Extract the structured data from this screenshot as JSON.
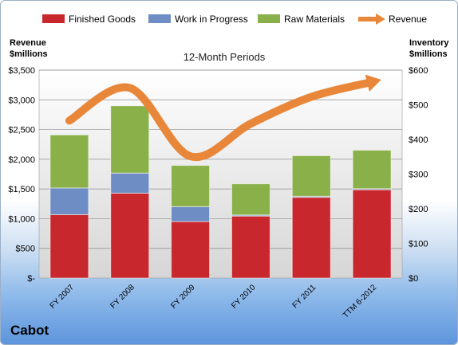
{
  "company": "Cabot",
  "chart_data": {
    "type": "bar",
    "stacked": true,
    "title": "12-Month Periods",
    "categories": [
      "FY 2007",
      "FY 2008",
      "FY 2009",
      "FY 2010",
      "FY 2011",
      "TTM 6-2012"
    ],
    "left_axis_label": [
      "Revenue",
      "$millions"
    ],
    "right_axis_label": [
      "Inventory",
      "$millions"
    ],
    "left_axis": {
      "range": [
        0,
        3500
      ],
      "ticks": [
        "$-",
        "$500",
        "$1,000",
        "$1,500",
        "$2,000",
        "$2,500",
        "$3,000",
        "$3,500"
      ]
    },
    "right_axis": {
      "range": [
        0,
        600
      ],
      "ticks": [
        "$0",
        "$100",
        "$200",
        "$300",
        "$400",
        "$500",
        "$600"
      ]
    },
    "grid": true,
    "legend_position": "top",
    "series": [
      {
        "name": "Finished Goods",
        "axis": "right",
        "type": "bar",
        "color": "#c8282d",
        "values": [
          183,
          245,
          163,
          179,
          233,
          255
        ]
      },
      {
        "name": "Work in Progress",
        "axis": "right",
        "type": "bar",
        "color": "#6e8dc5",
        "values": [
          77,
          58,
          43,
          3,
          3,
          3
        ]
      },
      {
        "name": "Raw Materials",
        "axis": "right",
        "type": "bar",
        "color": "#8ab04a",
        "values": [
          153,
          194,
          119,
          90,
          117,
          111
        ]
      },
      {
        "name": "Revenue",
        "axis": "left",
        "type": "line",
        "color": "#e8873a",
        "values": [
          2650,
          3200,
          2050,
          2600,
          3050,
          3300
        ]
      }
    ]
  }
}
